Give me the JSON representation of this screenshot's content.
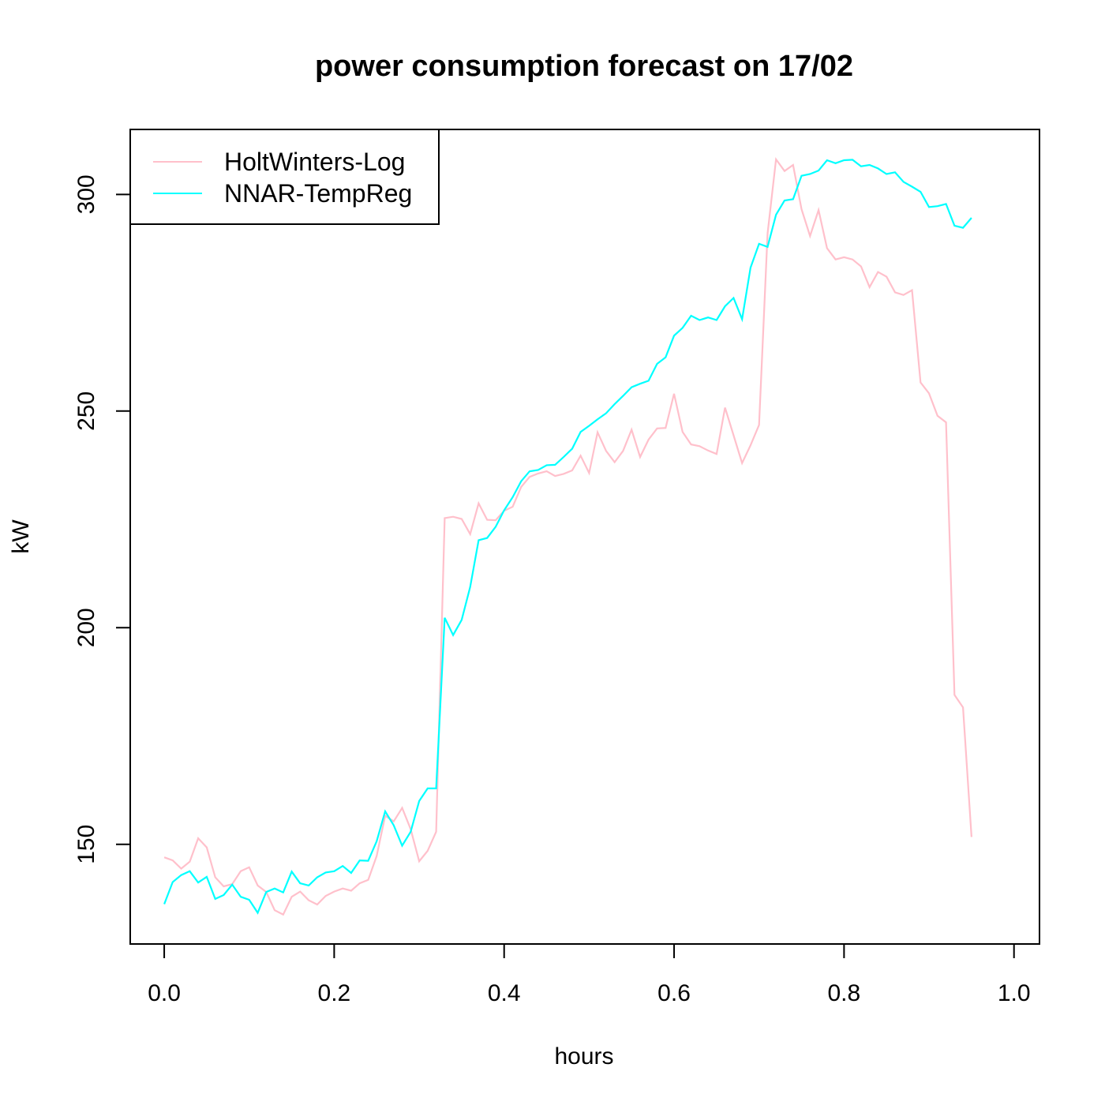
{
  "chart_data": {
    "type": "line",
    "title": "power consumption forecast on 17/02",
    "xlabel": "hours",
    "ylabel": "kW",
    "xlim": [
      -0.04,
      1.03
    ],
    "ylim": [
      127,
      315
    ],
    "x_ticks": [
      0.0,
      0.2,
      0.4,
      0.6,
      0.8,
      1.0
    ],
    "x_tick_labels": [
      "0.0",
      "0.2",
      "0.4",
      "0.6",
      "0.8",
      "1.0"
    ],
    "y_ticks": [
      150,
      200,
      250,
      300
    ],
    "y_tick_labels": [
      "150",
      "200",
      "250",
      "300"
    ],
    "grid": false,
    "legend_position": "top-left",
    "x_start": 0,
    "x_step": 0.01,
    "series": [
      {
        "name": "HoltWinters-Log",
        "color": "#FFC0CB",
        "values": [
          147.0,
          146.3,
          144.4,
          146.0,
          151.4,
          149.3,
          142.4,
          140.3,
          140.8,
          143.8,
          144.7,
          140.5,
          139.0,
          134.8,
          133.8,
          137.9,
          139.1,
          137.1,
          136.1,
          138.1,
          139.1,
          139.8,
          139.3,
          141.0,
          141.8,
          147.3,
          156.6,
          155.3,
          158.4,
          153.5,
          146.1,
          148.5,
          152.9,
          225.3,
          225.6,
          225.1,
          221.6,
          228.7,
          224.9,
          224.8,
          227.0,
          227.9,
          232.5,
          234.8,
          235.6,
          236.1,
          235.0,
          235.5,
          236.3,
          239.7,
          235.7,
          245.1,
          240.8,
          238.2,
          240.8,
          245.7,
          239.4,
          243.4,
          246.0,
          246.1,
          254.0,
          245.2,
          242.3,
          241.9,
          240.9,
          240.1,
          250.8,
          244.4,
          238.0,
          242.1,
          246.8,
          291.0,
          308.1,
          305.4,
          306.8,
          296.6,
          290.4,
          296.4,
          287.6,
          285.0,
          285.5,
          285.0,
          283.4,
          278.6,
          282.1,
          281.0,
          277.4,
          276.8,
          277.9,
          256.6,
          254.1,
          248.9,
          247.4,
          184.5,
          181.6,
          151.7
        ]
      },
      {
        "name": "NNAR-TempReg",
        "color": "#00FFFF",
        "values": [
          136.2,
          141.3,
          142.9,
          143.8,
          141.2,
          142.5,
          137.4,
          138.3,
          140.7,
          137.9,
          137.2,
          134.2,
          139.0,
          139.8,
          138.9,
          143.7,
          141.0,
          140.5,
          142.4,
          143.5,
          143.8,
          145.0,
          143.4,
          146.3,
          146.2,
          150.7,
          157.6,
          154.4,
          149.7,
          152.9,
          160.0,
          162.9,
          162.9,
          202.3,
          198.3,
          201.8,
          209.4,
          220.2,
          220.7,
          223.3,
          227.1,
          230.1,
          233.8,
          236.1,
          236.4,
          237.5,
          237.6,
          239.4,
          241.3,
          245.2,
          246.6,
          248.1,
          249.5,
          251.6,
          253.5,
          255.5,
          256.3,
          257.0,
          260.9,
          262.4,
          267.4,
          269.2,
          272.0,
          271.0,
          271.6,
          271.0,
          274.2,
          276.1,
          271.2,
          283.1,
          288.6,
          287.9,
          295.3,
          298.6,
          298.9,
          304.3,
          304.7,
          305.5,
          307.9,
          307.2,
          307.9,
          308.0,
          306.5,
          306.8,
          306.0,
          304.7,
          305.1,
          302.9,
          301.8,
          300.6,
          297.1,
          297.3,
          297.8,
          292.8,
          292.3,
          294.6
        ]
      }
    ]
  }
}
